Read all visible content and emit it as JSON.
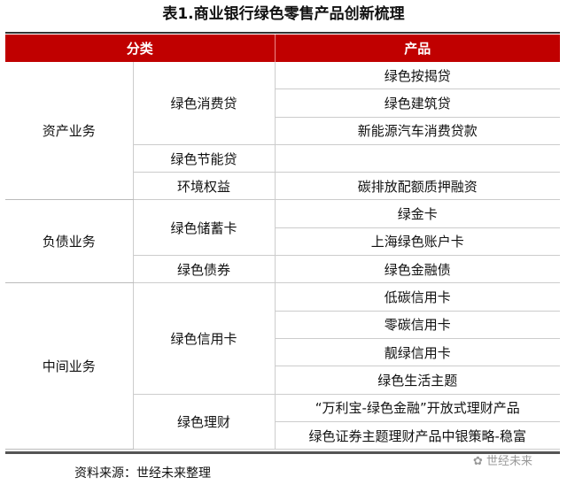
{
  "title": "表1.商业银行绿色零售产品创新梳理",
  "headers": {
    "category": "分类",
    "product": "产品"
  },
  "groups": [
    {
      "name": "资产业务",
      "subs": [
        {
          "name": "绿色消费贷",
          "products": [
            "绿色按揭贷",
            "绿色建筑贷",
            "新能源汽车消费贷款"
          ]
        },
        {
          "name": "绿色节能贷",
          "products": [
            ""
          ]
        },
        {
          "name": "环境权益",
          "products": [
            "碳排放配额质押融资"
          ]
        }
      ]
    },
    {
      "name": "负债业务",
      "subs": [
        {
          "name": "绿色储蓄卡",
          "products": [
            "绿金卡",
            "上海绿色账户卡"
          ]
        },
        {
          "name": "绿色债券",
          "products": [
            "绿色金融债"
          ]
        }
      ]
    },
    {
      "name": "中间业务",
      "subs": [
        {
          "name": "绿色信用卡",
          "products": [
            "低碳信用卡",
            "零碳信用卡",
            "靓绿信用卡",
            "绿色生活主题"
          ]
        },
        {
          "name": "绿色理财",
          "products": [
            "“万利宝-绿色金融”开放式理财产品",
            "绿色证券主题理财产品中银策略-稳富"
          ]
        }
      ]
    }
  ],
  "source": "资料来源：世经未来整理",
  "watermark": "世经未来",
  "colors": {
    "header_bg": "#c00000"
  }
}
